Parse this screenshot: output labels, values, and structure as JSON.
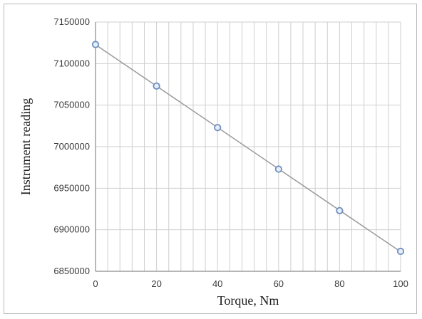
{
  "chart_data": {
    "type": "scatter",
    "title": "",
    "xlabel": "Torque, Nm",
    "ylabel": "Instrument reading",
    "xlim": [
      0,
      100
    ],
    "ylim": [
      6850000,
      7150000
    ],
    "x_ticks": [
      "0",
      "20",
      "40",
      "60",
      "80",
      "100"
    ],
    "y_ticks": [
      "6850000",
      "6900000",
      "6950000",
      "7000000",
      "7050000",
      "7100000",
      "7150000"
    ],
    "grid": {
      "vertical": true,
      "horizontal": true,
      "vertical_minor_step": 4
    },
    "legend": "none",
    "series": [
      {
        "x": [
          0,
          20,
          40,
          60,
          80,
          100
        ],
        "y": [
          7123000,
          7073000,
          7023000,
          6973000,
          6923000,
          6874000
        ],
        "marker": "open-circle",
        "trendline": "linear"
      }
    ],
    "colors": {
      "marker": "#6f8fbf",
      "trendline": "#9a9a9a",
      "grid": "#cfcfcf",
      "axis": "#8a8a8a"
    }
  }
}
